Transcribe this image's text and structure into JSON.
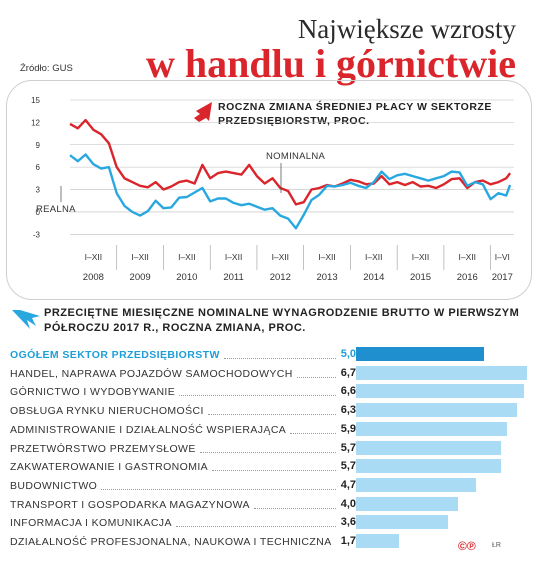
{
  "header": {
    "title_line1": "Największe wzrosty",
    "title_line2": "w handlu i górnictwie",
    "source": "Źródło: GUS"
  },
  "line_chart_heading": "Roczna zmiana średniej płacy w sektorze przedsiębiorstw, proc.",
  "bar_chart_heading": "Przeciętne miesięczne nominalne wynagrodzenie brutto w pierwszym półroczu 2017 r., roczna zmiana, proc.",
  "footer": {
    "logo": "©℗",
    "author": "ŁR"
  },
  "colors": {
    "nominal": "#d9252b",
    "real": "#29a8e0",
    "bar_highlight": "#1f8fd0",
    "bar": "#a9dbf5",
    "accent_text": "#1f9ed8"
  },
  "chart_data": [
    {
      "type": "line",
      "title": "Roczna zmiana średniej płacy w sektorze przedsiębiorstw, proc.",
      "x": [
        "2008-01",
        "2008-03",
        "2008-05",
        "2008-07",
        "2008-09",
        "2008-11",
        "2009-01",
        "2009-03",
        "2009-05",
        "2009-07",
        "2009-09",
        "2009-11",
        "2010-01",
        "2010-03",
        "2010-05",
        "2010-07",
        "2010-09",
        "2010-11",
        "2011-01",
        "2011-03",
        "2011-05",
        "2011-07",
        "2011-09",
        "2011-11",
        "2012-01",
        "2012-03",
        "2012-05",
        "2012-07",
        "2012-09",
        "2012-11",
        "2013-01",
        "2013-03",
        "2013-05",
        "2013-07",
        "2013-09",
        "2013-11",
        "2014-01",
        "2014-03",
        "2014-05",
        "2014-07",
        "2014-09",
        "2014-11",
        "2015-01",
        "2015-03",
        "2015-05",
        "2015-07",
        "2015-09",
        "2015-11",
        "2016-01",
        "2016-03",
        "2016-05",
        "2016-07",
        "2016-09",
        "2016-11",
        "2017-01",
        "2017-03",
        "2017-05",
        "2017-06"
      ],
      "x_tick_labels": [
        "I–XII",
        "I–XII",
        "I–XII",
        "I–XII",
        "I–XII",
        "I–XII",
        "I–XII",
        "I–XII",
        "I–XII",
        "I–VI"
      ],
      "x_year_labels": [
        "2008",
        "2009",
        "2010",
        "2011",
        "2012",
        "2013",
        "2014",
        "2015",
        "2016",
        "2017"
      ],
      "yticks": [
        -3,
        0,
        3,
        6,
        9,
        12,
        15
      ],
      "ylim": [
        -3.5,
        15
      ],
      "grid": true,
      "series": [
        {
          "name": "NOMINALNA",
          "values": [
            11.8,
            11.2,
            12.3,
            11.0,
            10.4,
            9.2,
            6.0,
            4.5,
            4.0,
            3.5,
            3.3,
            4.0,
            3.0,
            3.4,
            4.0,
            4.2,
            3.8,
            6.3,
            4.5,
            5.2,
            5.4,
            5.2,
            5.0,
            6.3,
            4.8,
            3.8,
            4.5,
            3.2,
            2.8,
            1.0,
            1.3,
            3.0,
            3.2,
            3.6,
            3.4,
            3.8,
            4.3,
            4.1,
            3.7,
            3.8,
            4.8,
            3.7,
            4.0,
            3.6,
            4.0,
            3.4,
            3.5,
            3.2,
            3.7,
            4.4,
            4.5,
            3.2,
            4.0,
            4.2,
            3.7,
            4.0,
            4.5,
            5.2
          ]
        },
        {
          "name": "REALNA",
          "values": [
            7.6,
            6.8,
            7.7,
            6.4,
            5.8,
            6.0,
            2.5,
            0.8,
            0.0,
            -0.5,
            0.1,
            1.5,
            0.5,
            0.6,
            1.9,
            2.0,
            2.6,
            3.2,
            1.4,
            1.8,
            1.8,
            1.2,
            0.9,
            1.1,
            0.7,
            0.3,
            0.5,
            -0.5,
            -0.9,
            -2.2,
            -0.4,
            1.6,
            2.3,
            3.5,
            3.4,
            3.6,
            3.9,
            3.5,
            3.2,
            4.0,
            5.4,
            4.4,
            4.9,
            5.1,
            4.8,
            4.5,
            4.2,
            4.5,
            4.8,
            5.4,
            5.3,
            3.5,
            4.0,
            3.7,
            1.7,
            2.5,
            2.2,
            3.6
          ]
        }
      ],
      "annotations": [
        "NOMINALNA",
        "REALNA"
      ]
    },
    {
      "type": "bar",
      "title": "Przeciętne miesięczne nominalne wynagrodzenie brutto w pierwszym półroczu 2017 r., roczna zmiana, proc.",
      "categories": [
        "OGÓŁEM SEKTOR PRZEDSIĘBIORSTW",
        "HANDEL, NAPRAWA POJAZDÓW SAMOCHODOWYCH",
        "GÓRNICTWO I WYDOBYWANIE",
        "OBSŁUGA RYNKU NIERUCHOMOŚCI",
        "ADMINISTROWANIE I DZIAŁALNOŚĆ WSPIERAJĄCA",
        "PRZETWÓRSTWO PRZEMYSŁOWE",
        "ZAKWATEROWANIE I GASTRONOMIA",
        "BUDOWNICTWO",
        "TRANSPORT I GOSPODARKA MAGAZYNOWA",
        "INFORMACJA I KOMUNIKACJA",
        "DZIAŁALNOŚĆ PROFESJONALNA, NAUKOWA I TECHNICZNA"
      ],
      "values": [
        5.0,
        6.7,
        6.6,
        6.3,
        5.9,
        5.7,
        5.7,
        4.7,
        4.0,
        3.6,
        1.7
      ],
      "value_labels": [
        "5,0",
        "6,7",
        "6,6",
        "6,3",
        "5,9",
        "5,7",
        "5,7",
        "4,7",
        "4,0",
        "3,6",
        "1,7"
      ],
      "highlight_index": 0,
      "ylim": [
        0,
        6.7
      ]
    }
  ]
}
